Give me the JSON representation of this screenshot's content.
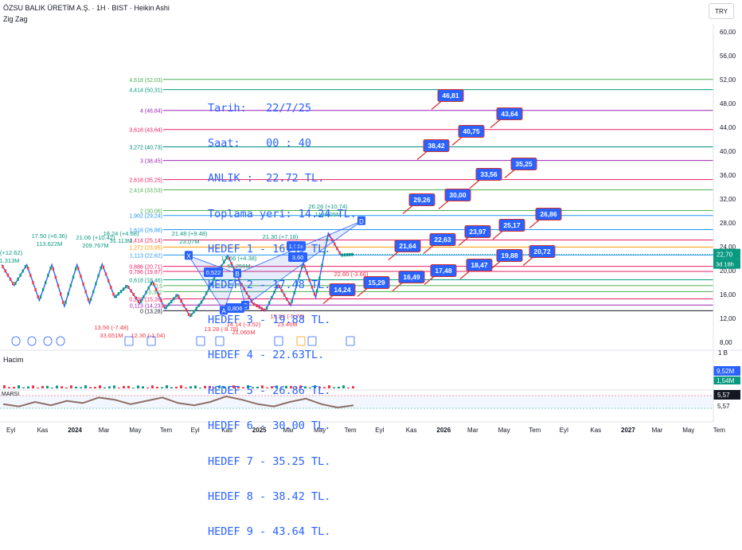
{
  "header": {
    "symbol_line": "ÖZSU BALIK ÜRETİM A.Ş. · 1H · BIST · Heikin Ashi",
    "indicator": "Zig Zag",
    "currency": "TRY"
  },
  "note_lines": [
    "Tarih:   22/7/25",
    "Saat:    00 : 40",
    "ANLIK :  22.72 TL.",
    "Toplama yeri: 14.24 TL.",
    "HEDEF 1 - 16.49 TL.",
    "HEDEF 2 - 17.48 TL.",
    "HEDEF 3 - 19.88 TL.",
    "HEDEF 4 - 22.63TL.",
    "HEDEF 5 - 26.86 TL.",
    "HEDEF 6 - 30.00 TL.",
    "HEDEF 7 - 35.25 TL.",
    "HEDEF 8 - 38.42 TL.",
    "HEDEF 9 - 43.64 TL."
  ],
  "chart_data": {
    "type": "line",
    "title": "ÖZSU BALIK ÜRETİM A.Ş. · 1H · BIST · Heikin Ashi",
    "x_ticks": [
      "Eyl",
      "Kas",
      "2024",
      "Mar",
      "May",
      "Tem",
      "Eyl",
      "Kas",
      "2025",
      "Mar",
      "May",
      "Tem",
      "Eyl",
      "Kas",
      "2026",
      "Mar",
      "May",
      "Tem",
      "Eyl",
      "Kas",
      "2027",
      "Mar",
      "May",
      "Tem"
    ],
    "y_ticks": [
      "60,00",
      "56,00",
      "52,00",
      "48,00",
      "44,00",
      "40,00",
      "36,00",
      "32,00",
      "28,00",
      "24,00",
      "20,00",
      "16,00",
      "12,00",
      "8,00"
    ],
    "ylim": [
      8,
      60
    ],
    "last_price_label": "22,70",
    "countdown_label": "3d 18h",
    "volume_scale_label": "1 B",
    "volume_labels": [
      "9,52M",
      "1,54M"
    ],
    "marsi_labels": [
      "5,57",
      "5,57"
    ],
    "fib_levels": [
      {
        "label": "4,618 (52,03)",
        "value": 52.03,
        "color": "#4caf50"
      },
      {
        "label": "4,414 (50,31)",
        "value": 50.31,
        "color": "#089981"
      },
      {
        "label": "4 (46,84)",
        "value": 46.84,
        "color": "#9c27b0"
      },
      {
        "label": "3,618 (43,64)",
        "value": 43.64,
        "color": "#e91e63"
      },
      {
        "label": "3,272 (40,73)",
        "value": 40.73,
        "color": "#00897b"
      },
      {
        "label": "3 (38,45)",
        "value": 38.45,
        "color": "#9c27b0"
      },
      {
        "label": "2,618 (35,25)",
        "value": 35.25,
        "color": "#e91e63"
      },
      {
        "label": "2,414 (33,53)",
        "value": 33.53,
        "color": "#4caf50"
      },
      {
        "label": "2 (30,06)",
        "value": 30.06,
        "color": "#4caf50"
      },
      {
        "label": "1,902 (29,24)",
        "value": 29.24,
        "color": "#2196f3"
      },
      {
        "label": "1,618 (26,86)",
        "value": 26.86,
        "color": "#2196f3"
      },
      {
        "label": "1,414 (25,14)",
        "value": 25.14,
        "color": "#e91e63"
      },
      {
        "label": "1,272 (23,95)",
        "value": 23.95,
        "color": "#ff9800"
      },
      {
        "label": "1,113 (22,62)",
        "value": 22.62,
        "color": "#2196f3"
      },
      {
        "label": "0,886 (20,71)",
        "value": 20.71,
        "color": "#e91e63"
      },
      {
        "label": "0,786 (19,87)",
        "value": 19.87,
        "color": "#e91e63"
      },
      {
        "label": "0,618 (18,46)",
        "value": 18.46,
        "color": "#089981"
      },
      {
        "label": "0,5",
        "value": 17.48,
        "color": "#4caf50"
      },
      {
        "label": "0,382",
        "value": 16.49,
        "color": "#4caf50"
      },
      {
        "label": "0,236 (15,26)",
        "value": 15.26,
        "color": "#e91e63"
      },
      {
        "label": "0,113 (14,23)",
        "value": 14.23,
        "color": "#9c27b0"
      },
      {
        "label": "0 (13,28)",
        "value": 13.28,
        "color": "#131722"
      }
    ],
    "targets": [
      {
        "label": "46,81",
        "value": 46.81
      },
      {
        "label": "43,64",
        "value": 43.64
      },
      {
        "label": "40,75",
        "value": 40.75
      },
      {
        "label": "38,42",
        "value": 38.42
      },
      {
        "label": "35,25",
        "value": 35.25
      },
      {
        "label": "33,56",
        "value": 33.56
      },
      {
        "label": "30,00",
        "value": 30.0
      },
      {
        "label": "29,26",
        "value": 29.26
      },
      {
        "label": "26,86",
        "value": 26.86
      },
      {
        "label": "25,17",
        "value": 25.17
      },
      {
        "label": "23,97",
        "value": 23.97
      },
      {
        "label": "22,63",
        "value": 22.63
      },
      {
        "label": "21,64",
        "value": 21.64
      },
      {
        "label": "20,72",
        "value": 20.72
      },
      {
        "label": "19,88",
        "value": 19.88
      },
      {
        "label": "18,47",
        "value": 18.47
      },
      {
        "label": "17,48",
        "value": 17.48
      },
      {
        "label": "16,49",
        "value": 16.49
      },
      {
        "label": "15,29",
        "value": 15.29
      },
      {
        "label": "14,24",
        "value": 14.24
      }
    ],
    "pattern_points": [
      {
        "label": "X",
        "value": 22.5
      },
      {
        "label": "A",
        "value": 13.28
      },
      {
        "label": "B",
        "value": 19.5
      },
      {
        "label": "C",
        "value": 14.14
      },
      {
        "label": "D",
        "value": 28.3
      }
    ],
    "pattern_ratios": [
      "0,522",
      "0,806",
      "1,618",
      "3,60"
    ],
    "zigzag_labels": [
      "21.06 (+10.42)",
      "209.767M",
      "17.50 (+6.36)",
      "113.622M",
      "18.24 (+4.68)",
      "31.113M",
      "13.56 (-7.48)",
      "33.651M",
      "12.30 (-1.04)",
      "13.28 (-8.78)",
      "14.14 (-3.52)",
      "21.065M",
      "17.66 (+4.38)",
      "56.256M",
      "21.30 (+7.18)",
      "26.26 (+10.74)",
      "118.805M",
      "15.54 (-5.76)",
      "23.46M",
      "22.60 (-3.66)",
      "21.48 (+9.48)",
      "23.07M",
      "(+12.62)",
      "1.313M"
    ],
    "series": [
      {
        "values": [
          21,
          17.5,
          21,
          15,
          21,
          14,
          21,
          14.5,
          21.1,
          15.5,
          17.5,
          14.5,
          18.2,
          13.6,
          16,
          12.3,
          15,
          19,
          22.5,
          18,
          14.5,
          13.28,
          17.7,
          14.14,
          21.3,
          15.5,
          26.26,
          22.6,
          22.72
        ]
      },
      {
        "values": [
          16.2,
          16.0,
          16.4,
          16.1,
          16.5,
          16.3,
          16.8,
          16.6,
          16.2,
          16.5,
          16.8,
          16.3,
          16.1,
          16.4,
          16.9,
          16.6,
          16.2,
          16.0,
          16.4,
          16.7,
          16.2,
          15.9,
          16.1
        ]
      }
    ]
  }
}
